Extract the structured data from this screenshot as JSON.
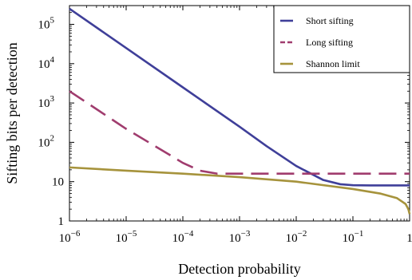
{
  "chart_data": {
    "type": "line",
    "xlabel": "Detection probability",
    "ylabel": "Sifting bits per detection",
    "x_scale": "log",
    "y_scale": "log",
    "xlim": [
      1e-06,
      1
    ],
    "ylim": [
      1,
      300000
    ],
    "x_ticks": [
      {
        "value": 1e-06,
        "base": "10",
        "exp": "−6"
      },
      {
        "value": 1e-05,
        "base": "10",
        "exp": "−5"
      },
      {
        "value": 0.0001,
        "base": "10",
        "exp": "−4"
      },
      {
        "value": 0.001,
        "base": "10",
        "exp": "−3"
      },
      {
        "value": 0.01,
        "base": "10",
        "exp": "−2"
      },
      {
        "value": 0.1,
        "base": "10",
        "exp": "−1"
      },
      {
        "value": 1,
        "base": "1",
        "exp": ""
      }
    ],
    "y_ticks": [
      {
        "value": 1,
        "base": "1",
        "exp": ""
      },
      {
        "value": 10,
        "base": "10",
        "exp": ""
      },
      {
        "value": 100,
        "base": "10",
        "exp": "2"
      },
      {
        "value": 1000,
        "base": "10",
        "exp": "3"
      },
      {
        "value": 10000,
        "base": "10",
        "exp": "4"
      },
      {
        "value": 100000,
        "base": "10",
        "exp": "5"
      }
    ],
    "legend_position": "top-right",
    "series": [
      {
        "name": "Short sifting",
        "color": "#3f3f99",
        "dash": "solid",
        "x": [
          1e-06,
          1e-05,
          0.0001,
          0.001,
          0.003,
          0.01,
          0.03,
          0.06,
          0.1,
          0.2,
          0.5,
          1
        ],
        "y": [
          250000,
          25000,
          2500,
          250,
          80,
          25,
          11,
          8.6,
          8.1,
          8.0,
          8.0,
          8.0
        ]
      },
      {
        "name": "Long sifting",
        "color": "#a03c6e",
        "dash": "dashed",
        "x": [
          1e-06,
          1e-05,
          5e-05,
          0.0001,
          0.0002,
          0.0004,
          0.001,
          0.01,
          0.1,
          1
        ],
        "y": [
          2000,
          220,
          55,
          30,
          19,
          16,
          16,
          16,
          16,
          16
        ]
      },
      {
        "name": "Shannon limit",
        "color": "#a6933c",
        "dash": "solid",
        "x": [
          1e-06,
          1e-05,
          0.0001,
          0.001,
          0.01,
          0.1,
          0.3,
          0.6,
          0.85,
          0.95,
          1
        ],
        "y": [
          23,
          19,
          16,
          13,
          10,
          6.5,
          5,
          3.8,
          2.7,
          2.0,
          1.5
        ]
      }
    ]
  }
}
